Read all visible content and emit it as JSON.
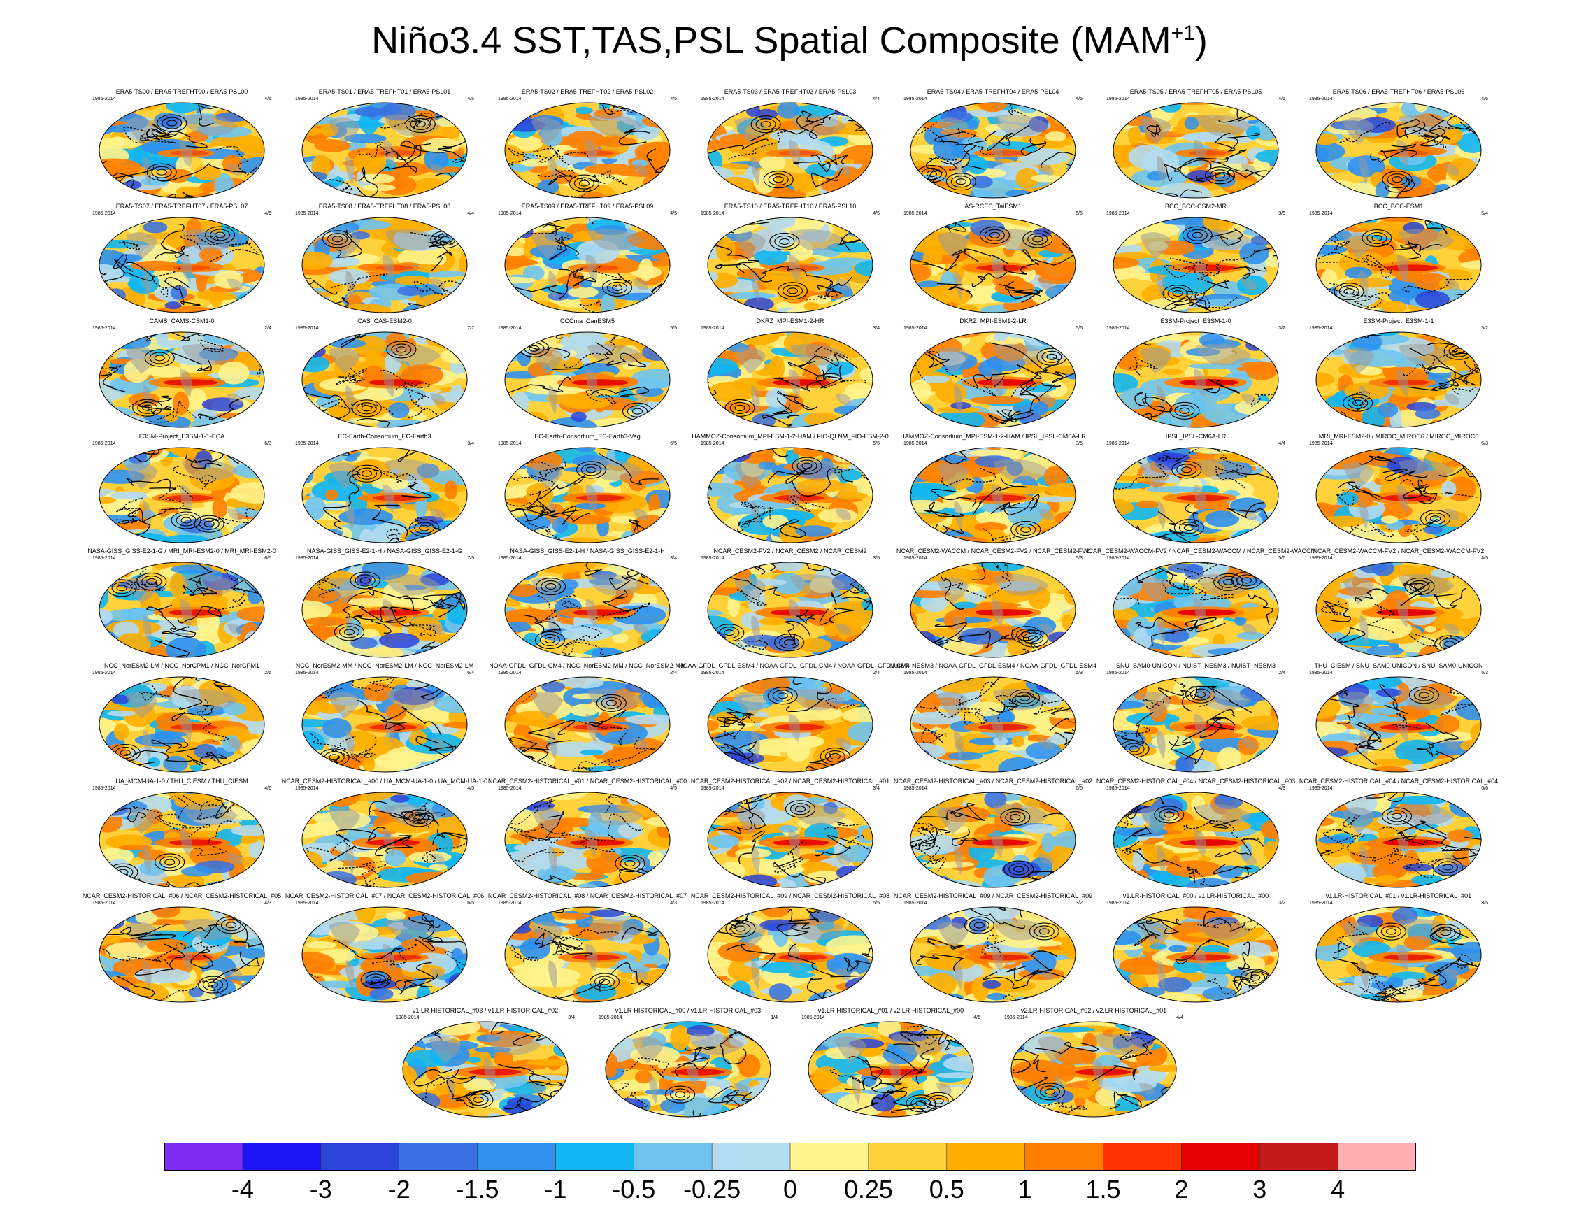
{
  "title": {
    "main": "Niño3.4 SST,TAS,PSL Spatial Composite (MAM",
    "sup": "+1",
    "close": ")"
  },
  "chart_data": {
    "type": "heatmap",
    "title": "Niño3.4 SST,TAS,PSL Spatial Composite (MAM+1)",
    "period": "1985-2014",
    "colors": {
      "bins": [
        "#7f2bf2",
        "#1b15f5",
        "#2a45d8",
        "#3770e0",
        "#2f90ee",
        "#11b6f2",
        "#6fc4ef",
        "#b2daf0",
        "#fff38c",
        "#ffd23c",
        "#ffae00",
        "#ff7e00",
        "#ff3300",
        "#e60000",
        "#c41a1a",
        "#ffafaf"
      ],
      "land": "#9a9a9a",
      "contour": "#000000"
    },
    "colorbar_labels": [
      "-4",
      "-3",
      "-2",
      "-1.5",
      "-1",
      "-0.5",
      "-0.25",
      "0",
      "0.25",
      "0.5",
      "1",
      "1.5",
      "2",
      "3",
      "4"
    ],
    "panels": [
      {
        "title": "ERA5-TS00 / ERA5-TREFHT00 / ERA5-PSL00",
        "period": "1985-2014",
        "score": "4/5"
      },
      {
        "title": "ERA5-TS01 / ERA5-TREFHT01 / ERA5-PSL01",
        "period": "1985-2014",
        "score": "4/5"
      },
      {
        "title": "ERA5-TS02 / ERA5-TREFHT02 / ERA5-PSL02",
        "period": "1985-2014",
        "score": "4/5"
      },
      {
        "title": "ERA5-TS03 / ERA5-TREFHT03 / ERA5-PSL03",
        "period": "1985-2014",
        "score": "4/4"
      },
      {
        "title": "ERA5-TS04 / ERA5-TREFHT04 / ERA5-PSL04",
        "period": "1985-2014",
        "score": "4/5"
      },
      {
        "title": "ERA5-TS05 / ERA5-TREFHT05 / ERA5-PSL05",
        "period": "1985-2014",
        "score": "4/5"
      },
      {
        "title": "ERA5-TS06 / ERA5-TREFHT06 / ERA5-PSL06",
        "period": "1985-2014",
        "score": "4/6"
      },
      {
        "title": "ERA5-TS07 / ERA5-TREFHT07 / ERA5-PSL07",
        "period": "1985-2014",
        "score": "4/5"
      },
      {
        "title": "ERA5-TS08 / ERA5-TREFHT08 / ERA5-PSL08",
        "period": "1985-2014",
        "score": "4/4"
      },
      {
        "title": "ERA5-TS09 / ERA5-TREFHT09 / ERA5-PSL09",
        "period": "1985-2014",
        "score": "4/5"
      },
      {
        "title": "ERA5-TS10 / ERA5-TREFHT10 / ERA5-PSL10",
        "period": "1985-2014",
        "score": "4/5"
      },
      {
        "title": "AS-RCEC_TaiESM1",
        "period": "1985-2014",
        "score": "5/5"
      },
      {
        "title": "BCC_BCC-CSM2-MR",
        "period": "1985-2014",
        "score": "3/5"
      },
      {
        "title": "BCC_BCC-ESM1",
        "period": "1985-2014",
        "score": "5/4"
      },
      {
        "title": "CAMS_CAMS-CSM1-0",
        "period": "1985-2014",
        "score": "2/4"
      },
      {
        "title": "CAS_CAS-ESM2-0",
        "period": "1985-2014",
        "score": "7/7"
      },
      {
        "title": "CCCma_CanESM5",
        "period": "1985-2014",
        "score": "5/5"
      },
      {
        "title": "DKRZ_MPI-ESM1-2-HR",
        "period": "1985-2014",
        "score": "3/4"
      },
      {
        "title": "DKRZ_MPI-ESM1-2-LR",
        "period": "1985-2014",
        "score": "5/6"
      },
      {
        "title": "E3SM-Project_E3SM-1-0",
        "period": "1985-2014",
        "score": "3/2"
      },
      {
        "title": "E3SM-Project_E3SM-1-1",
        "period": "1985-2014",
        "score": "5/2"
      },
      {
        "title": "E3SM-Project_E3SM-1-1-ECA",
        "period": "1985-2014",
        "score": "6/3"
      },
      {
        "title": "EC-Earth-Consortium_EC-Earth3",
        "period": "1985-2014",
        "score": "3/4"
      },
      {
        "title": "EC-Earth-Consortium_EC-Earth3-Veg",
        "period": "1985-2014",
        "score": "6/5"
      },
      {
        "title": "HAMMOZ-Consortium_MPI-ESM-1-2-HAM / FIO-QLNM_FIO-ESM-2-0",
        "period": "1985-2014",
        "score": "5/5"
      },
      {
        "title": "HAMMOZ-Consortium_MPI-ESM-1-2-HAM / IPSL_IPSL-CM6A-LR",
        "period": "1985-2014",
        "score": "3/5"
      },
      {
        "title": "IPSL_IPSL-CM6A-LR",
        "period": "1985-2014",
        "score": "4/4"
      },
      {
        "title": "MRI_MRI-ESM2-0 / MIROC_MIROC6 / MIROC_MIROC6",
        "period": "1985-2014",
        "score": "6/3"
      },
      {
        "title": "NASA-GISS_GISS-E2-1-G / MRI_MRI-ESM2-0 / MRI_MRI-ESM2-0",
        "period": "1985-2014",
        "score": "6/5"
      },
      {
        "title": "NASA-GISS_GISS-E2-1-H / NASA-GISS_GISS-E2-1-G",
        "period": "1985-2014",
        "score": "7/5"
      },
      {
        "title": "NASA-GISS_GISS-E2-1-H / NASA-GISS_GISS-E2-1-H",
        "period": "1985-2014",
        "score": "3/4"
      },
      {
        "title": "NCAR_CESM2-FV2 / NCAR_CESM2 / NCAR_CESM2",
        "period": "1985-2014",
        "score": "3/5"
      },
      {
        "title": "NCAR_CESM2-WACCM / NCAR_CESM2-FV2 / NCAR_CESM2-FV2",
        "period": "1985-2014",
        "score": "5/3"
      },
      {
        "title": "NCAR_CESM2-WACCM-FV2 / NCAR_CESM2-WACCM / NCAR_CESM2-WACCM",
        "period": "1985-2014",
        "score": "5/6"
      },
      {
        "title": "NCAR_CESM2-WACCM-FV2 / NCAR_CESM2-WACCM-FV2",
        "period": "1985-2014",
        "score": "4/5"
      },
      {
        "title": "NCC_NorESM2-LM / NCC_NorCPM1 / NCC_NorCPM1",
        "period": "1985-2014",
        "score": "2/6"
      },
      {
        "title": "NCC_NorESM2-MM / NCC_NorESM2-LM / NCC_NorESM2-LM",
        "period": "1985-2014",
        "score": "6/4"
      },
      {
        "title": "NOAA-GFDL_GFDL-CM4 / NCC_NorESM2-MM / NCC_NorESM2-MM",
        "period": "1985-2014",
        "score": "2/4"
      },
      {
        "title": "NOAA-GFDL_GFDL-ESM4 / NOAA-GFDL_GFDL-CM4 / NOAA-GFDL_GFDL-CM4",
        "period": "1985-2014",
        "score": "2/4"
      },
      {
        "title": "NUIST_NESM3 / NOAA-GFDL_GFDL-ESM4 / NOAA-GFDL_GFDL-ESM4",
        "period": "1985-2014",
        "score": "5/3"
      },
      {
        "title": "SNU_SAM0-UNICON / NUIST_NESM3 / NUIST_NESM3",
        "period": "1985-2014",
        "score": "2/4"
      },
      {
        "title": "THU_CIESM / SNU_SAM0-UNICON / SNU_SAM0-UNICON",
        "period": "1985-2014",
        "score": "5/3"
      },
      {
        "title": "UA_MCM-UA-1-0 / THU_CIESM / THU_CIESM",
        "period": "1985-2014",
        "score": "4/6"
      },
      {
        "title": "NCAR_CESM2-HISTORICAL_#00 / UA_MCM-UA-1-0 / UA_MCM-UA-1-0",
        "period": "1985-2014",
        "score": "4/5"
      },
      {
        "title": "NCAR_CESM2-HISTORICAL_#01 / NCAR_CESM2-HISTORICAL_#00",
        "period": "1985-2014",
        "score": "4/5"
      },
      {
        "title": "NCAR_CESM2-HISTORICAL_#02 / NCAR_CESM2-HISTORICAL_#01",
        "period": "1985-2014",
        "score": "3/4"
      },
      {
        "title": "NCAR_CESM2-HISTORICAL_#03 / NCAR_CESM2-HISTORICAL_#02",
        "period": "1985-2014",
        "score": "6/5"
      },
      {
        "title": "NCAR_CESM2-HISTORICAL_#04 / NCAR_CESM2-HISTORICAL_#03",
        "period": "1985-2014",
        "score": "4/3"
      },
      {
        "title": "NCAR_CESM2-HISTORICAL_#04 / NCAR_CESM2-HISTORICAL_#04",
        "period": "1985-2014",
        "score": "6/6"
      },
      {
        "title": "NCAR_CESM2-HISTORICAL_#06 / NCAR_CESM2-HISTORICAL_#05",
        "period": "1985-2014",
        "score": "4/3"
      },
      {
        "title": "NCAR_CESM2-HISTORICAL_#07 / NCAR_CESM2-HISTORICAL_#06",
        "period": "1985-2014",
        "score": "6/5"
      },
      {
        "title": "NCAR_CESM2-HISTORICAL_#08 / NCAR_CESM2-HISTORICAL_#07",
        "period": "1985-2014",
        "score": "4/3"
      },
      {
        "title": "NCAR_CESM2-HISTORICAL_#09 / NCAR_CESM2-HISTORICAL_#08",
        "period": "1985-2014",
        "score": "5/5"
      },
      {
        "title": "NCAR_CESM2-HISTORICAL_#09 / NCAR_CESM2-HISTORICAL_#09",
        "period": "1985-2014",
        "score": "3/2"
      },
      {
        "title": "v1.LR-HISTORICAL_#00 / v1.LR-HISTORICAL_#00",
        "period": "1985-2014",
        "score": "3/2"
      },
      {
        "title": "v1.LR-HISTORICAL_#01 / v1.LR-HISTORICAL_#01",
        "period": "1985-2014",
        "score": "3/5"
      },
      {
        "title": "v1.LR-HISTORICAL_#03 / v1.LR-HISTORICAL_#02",
        "period": "1985-2014",
        "score": "3/4"
      },
      {
        "title": "v1.LR-HISTORICAL_#00 / v1.LR-HISTORICAL_#03",
        "period": "1985-2014",
        "score": "1/4"
      },
      {
        "title": "v1.LR-HISTORICAL_#01 / v2.LR-HISTORICAL_#00",
        "period": "1985-2014",
        "score": "4/6"
      },
      {
        "title": "v2.LR-HISTORICAL_#02 / v2.LR-HISTORICAL_#01",
        "period": "1985-2014",
        "score": "4/4"
      }
    ]
  }
}
